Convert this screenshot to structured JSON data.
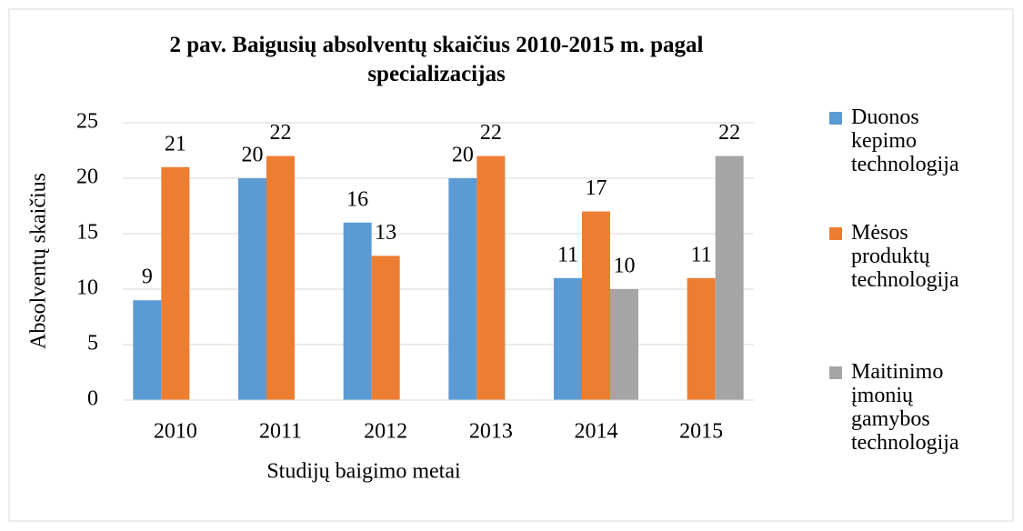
{
  "chart_data": {
    "type": "bar",
    "title": "2 pav. Baigusių absolventų skaičius 2010-2015 m. pagal specializacijas",
    "x_label": "Studijų baigimo metai",
    "y_label": "Absolventų skaičius",
    "categories": [
      "2010",
      "2011",
      "2012",
      "2013",
      "2014",
      "2015"
    ],
    "series": [
      {
        "name": "Duonos kepimo technologija",
        "color": "#5b9bd5",
        "values": [
          9,
          20,
          16,
          20,
          11,
          null
        ]
      },
      {
        "name": "Mėsos produktų technologija",
        "color": "#ed7d31",
        "values": [
          21,
          22,
          13,
          22,
          17,
          11
        ]
      },
      {
        "name": "Maitinimo įmonių gamybos technologija",
        "color": "#a5a5a5",
        "values": [
          null,
          null,
          null,
          null,
          10,
          22
        ]
      }
    ],
    "ylim": [
      0,
      25
    ],
    "yticks": [
      0,
      5,
      10,
      15,
      20,
      25
    ],
    "grid": true,
    "legend": "right"
  }
}
